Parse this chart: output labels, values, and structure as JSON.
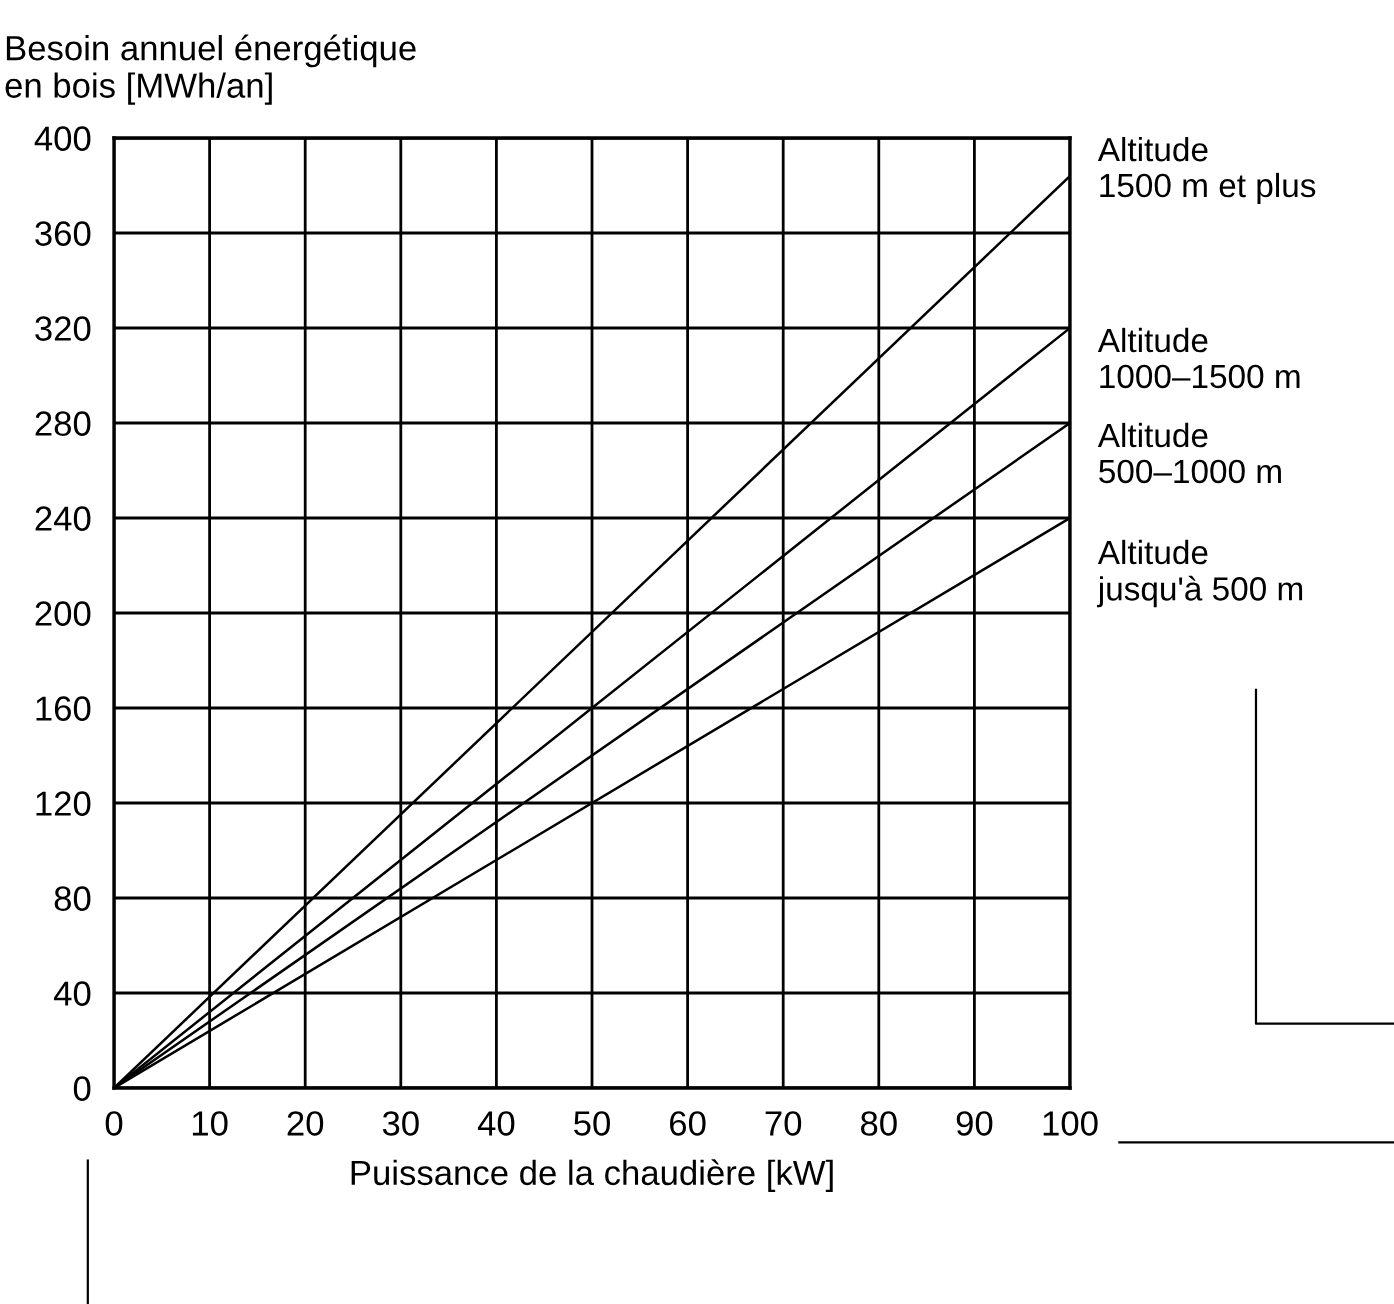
{
  "chart_data": {
    "type": "line",
    "xlabel": "Puissance de la chaudière [kW]",
    "ylabel": "Besoin annuel énergétique\nen bois [MWh/an]",
    "x": [
      0,
      100
    ],
    "series": [
      {
        "name": "Altitude\n1500 m et plus",
        "color": "#000000",
        "values": [
          0,
          384
        ]
      },
      {
        "name": "Altitude\n1000–1500 m",
        "color": "#000000",
        "values": [
          0,
          320
        ]
      },
      {
        "name": "Altitude\n500–1000 m",
        "color": "#000000",
        "values": [
          0,
          280
        ]
      },
      {
        "name": "Altitude\njusqu'à 500 m",
        "color": "#000000",
        "values": [
          0,
          240
        ]
      }
    ],
    "xlim": [
      0,
      100
    ],
    "xticks": [
      0,
      10,
      20,
      30,
      40,
      50,
      60,
      70,
      80,
      90,
      100
    ],
    "ylim": [
      0,
      400
    ],
    "yticks": [
      0,
      40,
      80,
      120,
      160,
      200,
      240,
      280,
      320,
      360,
      400
    ],
    "grid": true,
    "legend": false,
    "marker": "none",
    "line_style": "solid"
  }
}
